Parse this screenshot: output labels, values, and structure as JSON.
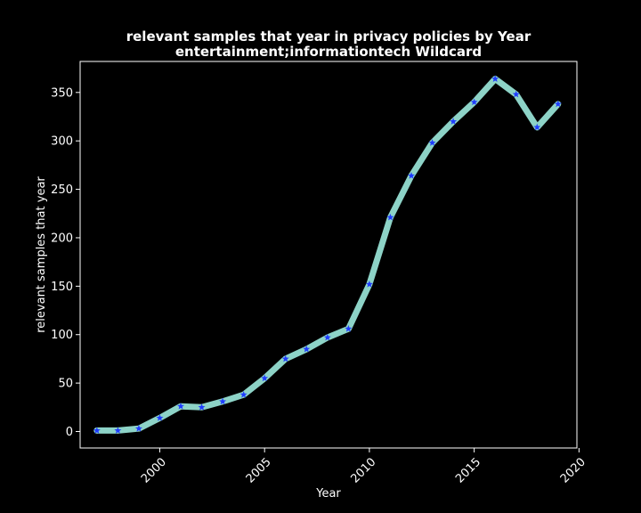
{
  "chart_data": {
    "type": "line",
    "title": "relevant samples that year in privacy policies by Year",
    "subtitle": "entertainment;informationtech Wildcard",
    "xlabel": "Year",
    "ylabel": "relevant samples that year",
    "xlim": [
      1996.2,
      2019.9
    ],
    "ylim": [
      -17,
      382
    ],
    "xticks": [
      2000,
      2005,
      2010,
      2015,
      2020
    ],
    "yticks": [
      0,
      50,
      100,
      150,
      200,
      250,
      300,
      350
    ],
    "grid": false,
    "background": "#000000",
    "line_color": "#8dd3c7",
    "marker_color": "#1f3cff",
    "marker": "star",
    "series": [
      {
        "x": [
          1997,
          1998,
          1999,
          2000,
          2001,
          2002,
          2003,
          2004,
          2005,
          2006,
          2007,
          2008,
          2009,
          2010,
          2011,
          2012,
          2013,
          2014,
          2015,
          2016,
          2017,
          2018,
          2019
        ],
        "values": [
          1,
          1,
          3,
          14,
          26,
          25,
          31,
          38,
          55,
          75,
          85,
          97,
          106,
          152,
          221,
          264,
          298,
          320,
          340,
          364,
          348,
          314,
          338
        ]
      }
    ]
  }
}
